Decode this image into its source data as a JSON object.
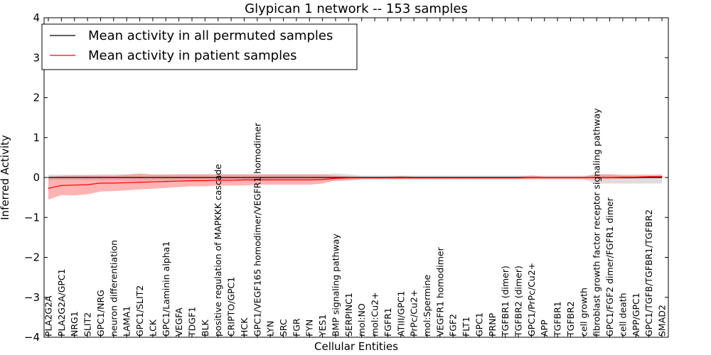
{
  "chart_data": {
    "type": "line",
    "title": "Glypican 1 network -- 153 samples",
    "xlabel": "Cellular Entities",
    "ylabel": "Inferred Activity",
    "ylim": [
      -4,
      4
    ],
    "yticks": [
      -4,
      -3,
      -2,
      -1,
      0,
      1,
      2,
      3,
      4
    ],
    "ytick_labels": [
      "−4",
      "−3",
      "−2",
      "−1",
      "0",
      "1",
      "2",
      "3",
      "4"
    ],
    "grid": false,
    "legend_position": "top-left",
    "categories": [
      "PLA2G2A",
      "PLA2G2A/GPC1",
      "NRG1",
      "SLIT2",
      "GPC1/NRG",
      "neuron differentiation",
      "LAMA1",
      "GPC1/SLIT2",
      "LCK",
      "GPC1/Laminin alpha1",
      "VEGFA",
      "TDGF1",
      "BLK",
      "positive regulation of MAPKKK cascade",
      "CRIPTO/GPC1",
      "HCK",
      "GPC1/VEGF165 homodimer/VEGFR1 homodimer",
      "LYN",
      "SRC",
      "FGR",
      "FYN",
      "YES1",
      "BMP signaling pathway",
      "SERPINC1",
      "mol:NO",
      "mol:Cu2+",
      "FGFR1",
      "ATIII/GPC1",
      "PrPc/Cu2+",
      "mol:Spermine",
      "VEGFR1 homodimer",
      "FGF2",
      "FLT1",
      "GPC1",
      "PRNP",
      "TGFBR1 (dimer)",
      "TGFBR2 (dimer)",
      "GPC1/PrPc/Cu2+",
      "APP",
      "TGFBR1",
      "TGFBR2",
      "cell growth",
      "fibroblast growth factor receptor signaling pathway",
      "GPC1/FGF2 dimer/FGFR1 dimer",
      "cell death",
      "APP/GPC1",
      "GPC1/TGFB/TGFBR1/TGFBR2",
      "SMAD2"
    ],
    "series": [
      {
        "name": "Mean activity in all permuted samples",
        "color": "#000000",
        "band_color": "#bbbbbb",
        "values": [
          0,
          0,
          0,
          0,
          0,
          0,
          0,
          0,
          0,
          0,
          0,
          0,
          0,
          0,
          0,
          0,
          0,
          0,
          0,
          0,
          0,
          0,
          0,
          0,
          0,
          0,
          0,
          0,
          0,
          0,
          0,
          0,
          0,
          0,
          0,
          0,
          0,
          0,
          0,
          0,
          0,
          0,
          0,
          0,
          0,
          0,
          0,
          0
        ],
        "upper": [
          0.07,
          0.07,
          0.07,
          0.07,
          0.08,
          0.08,
          0.08,
          0.1,
          0.08,
          0.08,
          0.08,
          0.08,
          0.08,
          0.08,
          0.08,
          0.08,
          0.08,
          0.08,
          0.08,
          0.08,
          0.08,
          0.08,
          0.1,
          0.08,
          0.05,
          0.05,
          0.05,
          0.05,
          0.05,
          0.05,
          0.05,
          0.05,
          0.05,
          0.05,
          0.05,
          0.05,
          0.05,
          0.05,
          0.05,
          0.05,
          0.05,
          0.05,
          0.08,
          0.08,
          0.08,
          0.08,
          0.08,
          0.08
        ],
        "lower": [
          -0.07,
          -0.07,
          -0.07,
          -0.07,
          -0.08,
          -0.08,
          -0.08,
          -0.1,
          -0.08,
          -0.08,
          -0.08,
          -0.08,
          -0.08,
          -0.08,
          -0.08,
          -0.08,
          -0.08,
          -0.08,
          -0.08,
          -0.08,
          -0.08,
          -0.08,
          -0.1,
          -0.08,
          -0.05,
          -0.05,
          -0.05,
          -0.05,
          -0.05,
          -0.05,
          -0.05,
          -0.05,
          -0.05,
          -0.05,
          -0.05,
          -0.05,
          -0.05,
          -0.05,
          -0.05,
          -0.05,
          -0.05,
          -0.05,
          -0.15,
          -0.15,
          -0.15,
          -0.15,
          -0.15,
          -0.15
        ]
      },
      {
        "name": "Mean activity in patient samples",
        "color": "#ff0000",
        "band_color": "#ff8080",
        "values": [
          -0.27,
          -0.2,
          -0.19,
          -0.18,
          -0.14,
          -0.14,
          -0.13,
          -0.12,
          -0.11,
          -0.1,
          -0.09,
          -0.08,
          -0.08,
          -0.07,
          -0.07,
          -0.06,
          -0.06,
          -0.06,
          -0.06,
          -0.06,
          -0.06,
          -0.05,
          -0.02,
          -0.01,
          -0.01,
          -0.01,
          -0.01,
          -0.01,
          -0.01,
          -0.01,
          -0.01,
          -0.01,
          -0.01,
          -0.01,
          -0.01,
          -0.01,
          -0.01,
          0,
          0,
          0,
          0,
          0,
          0,
          0,
          0.01,
          0.01,
          0.02,
          0.02
        ],
        "upper": [
          0.02,
          0.04,
          0.05,
          0.05,
          0.05,
          0.05,
          0.07,
          0.09,
          0.07,
          0.07,
          0.08,
          0.08,
          0.08,
          0.08,
          0.08,
          0.08,
          0.08,
          0.08,
          0.08,
          0.08,
          0.08,
          0.08,
          0.05,
          0.03,
          0.02,
          0.02,
          0.02,
          0.04,
          0.02,
          0.02,
          0.02,
          0.02,
          0.02,
          0.02,
          0.02,
          0.02,
          0.02,
          0.05,
          0.02,
          0.02,
          0.02,
          0.02,
          0.08,
          0.08,
          0.05,
          0.05,
          0.05,
          0.06
        ],
        "lower": [
          -0.55,
          -0.44,
          -0.45,
          -0.42,
          -0.35,
          -0.34,
          -0.32,
          -0.3,
          -0.28,
          -0.26,
          -0.24,
          -0.22,
          -0.22,
          -0.2,
          -0.2,
          -0.2,
          -0.18,
          -0.18,
          -0.18,
          -0.18,
          -0.18,
          -0.15,
          -0.07,
          -0.06,
          -0.04,
          -0.04,
          -0.04,
          -0.04,
          -0.04,
          -0.04,
          -0.04,
          -0.04,
          -0.04,
          -0.04,
          -0.04,
          -0.04,
          -0.04,
          -0.04,
          -0.04,
          -0.04,
          -0.04,
          -0.04,
          -0.04,
          -0.04,
          -0.03,
          -0.03,
          -0.01,
          -0.01
        ]
      }
    ]
  }
}
